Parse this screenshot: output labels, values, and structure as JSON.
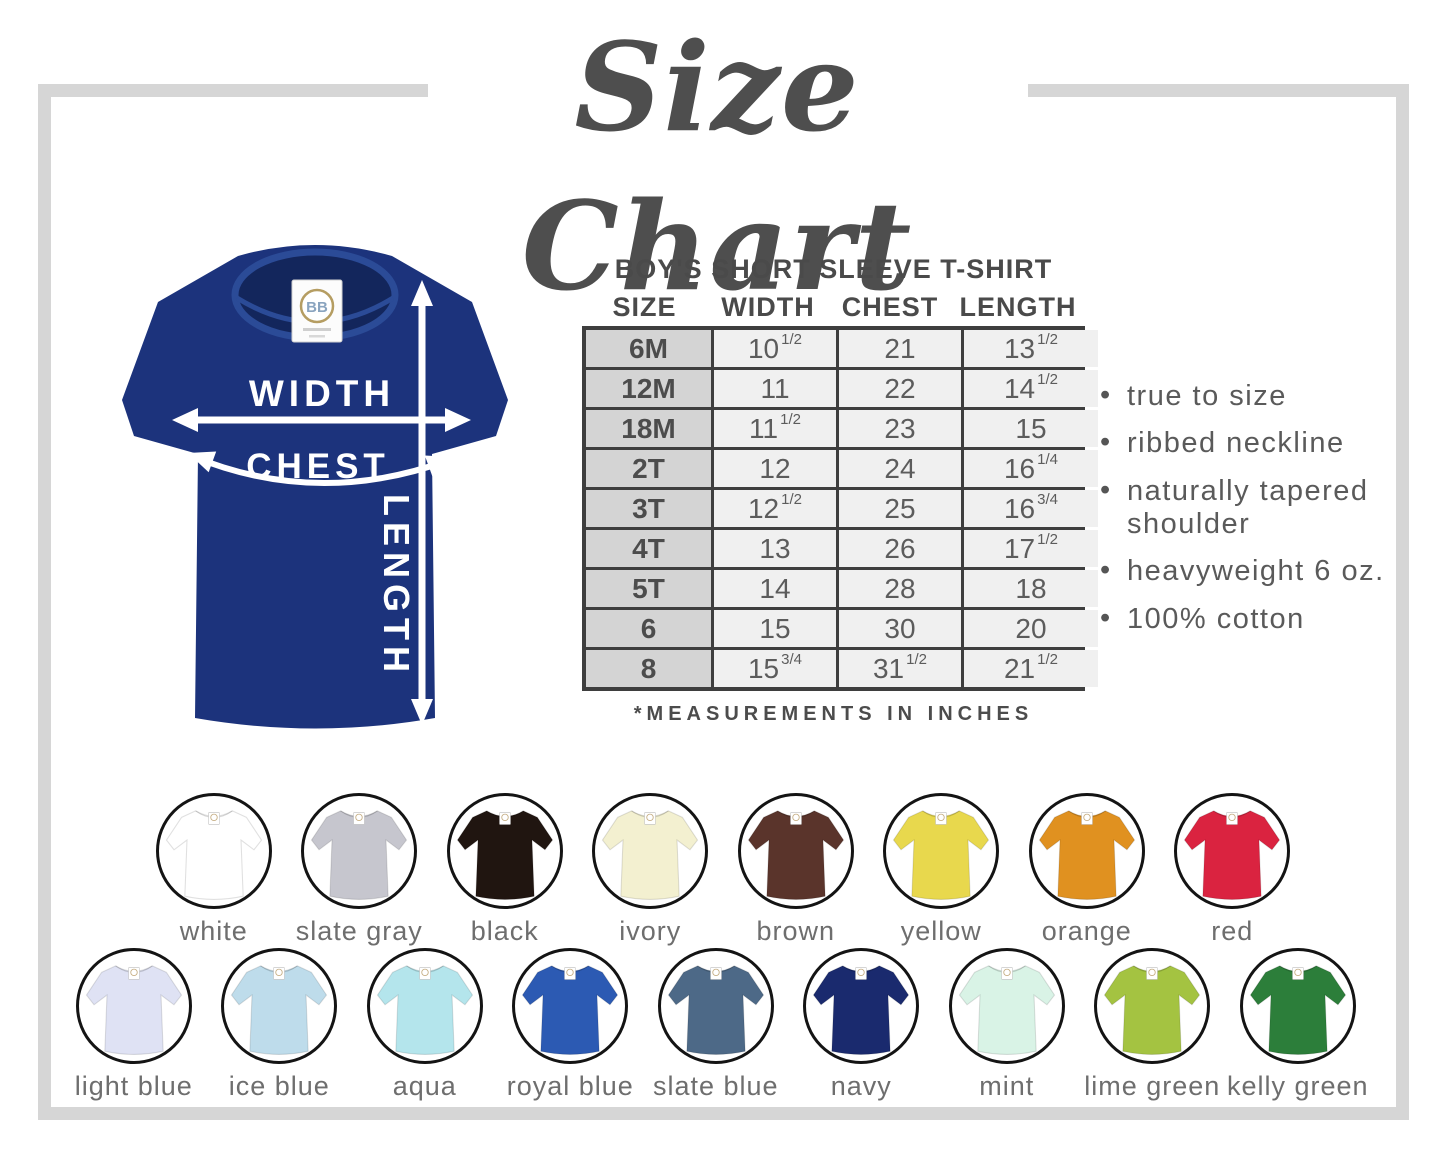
{
  "title": "Size Chart",
  "frame_color": "#d6d6d6",
  "illustration": {
    "shirt_color": "#1c337c",
    "tag_logo": "BB",
    "width_label": "WIDTH",
    "chest_label": "CHEST",
    "length_label": "LENGTH"
  },
  "size_table": {
    "heading": "BOY'S SHORT SLEEVE T-SHIRT",
    "columns": [
      "SIZE",
      "WIDTH",
      "CHEST",
      "LENGTH"
    ],
    "rows": [
      {
        "size": "6M",
        "width": [
          "10",
          "1/2"
        ],
        "chest": [
          "21",
          ""
        ],
        "length": [
          "13",
          "1/2"
        ]
      },
      {
        "size": "12M",
        "width": [
          "11",
          ""
        ],
        "chest": [
          "22",
          ""
        ],
        "length": [
          "14",
          "1/2"
        ]
      },
      {
        "size": "18M",
        "width": [
          "11",
          "1/2"
        ],
        "chest": [
          "23",
          ""
        ],
        "length": [
          "15",
          ""
        ]
      },
      {
        "size": "2T",
        "width": [
          "12",
          ""
        ],
        "chest": [
          "24",
          ""
        ],
        "length": [
          "16",
          "1/4"
        ]
      },
      {
        "size": "3T",
        "width": [
          "12",
          "1/2"
        ],
        "chest": [
          "25",
          ""
        ],
        "length": [
          "16",
          "3/4"
        ]
      },
      {
        "size": "4T",
        "width": [
          "13",
          ""
        ],
        "chest": [
          "26",
          ""
        ],
        "length": [
          "17",
          "1/2"
        ]
      },
      {
        "size": "5T",
        "width": [
          "14",
          ""
        ],
        "chest": [
          "28",
          ""
        ],
        "length": [
          "18",
          ""
        ]
      },
      {
        "size": "6",
        "width": [
          "15",
          ""
        ],
        "chest": [
          "30",
          ""
        ],
        "length": [
          "20",
          ""
        ]
      },
      {
        "size": "8",
        "width": [
          "15",
          "3/4"
        ],
        "chest": [
          "31",
          "1/2"
        ],
        "length": [
          "21",
          "1/2"
        ]
      }
    ],
    "note": "*MEASUREMENTS IN INCHES"
  },
  "features": [
    "true to size",
    "ribbed neckline",
    "naturally tapered shoulder",
    "heavyweight 6 oz.",
    "100% cotton"
  ],
  "swatches": {
    "row1": [
      {
        "label": "white",
        "hex": "#ffffff"
      },
      {
        "label": "slate gray",
        "hex": "#c6c6ce"
      },
      {
        "label": "black",
        "hex": "#201510"
      },
      {
        "label": "ivory",
        "hex": "#f3f0d0"
      },
      {
        "label": "brown",
        "hex": "#5a342b"
      },
      {
        "label": "yellow",
        "hex": "#e8d84d"
      },
      {
        "label": "orange",
        "hex": "#e09120"
      },
      {
        "label": "red",
        "hex": "#da2340"
      }
    ],
    "row2": [
      {
        "label": "light blue",
        "hex": "#dfe2f4"
      },
      {
        "label": "ice blue",
        "hex": "#bedceb"
      },
      {
        "label": "aqua",
        "hex": "#b4e5ec"
      },
      {
        "label": "royal blue",
        "hex": "#2c5ab3"
      },
      {
        "label": "slate blue",
        "hex": "#4d6987"
      },
      {
        "label": "navy",
        "hex": "#1a2a6e"
      },
      {
        "label": "mint",
        "hex": "#d9f3e6"
      },
      {
        "label": "lime green",
        "hex": "#a4c341"
      },
      {
        "label": "kelly green",
        "hex": "#2c7e3a"
      }
    ]
  },
  "chart_data": {
    "type": "table",
    "title": "BOY'S SHORT SLEEVE T-SHIRT",
    "columns": [
      "SIZE",
      "WIDTH",
      "CHEST",
      "LENGTH"
    ],
    "rows": [
      [
        "6M",
        "10 1/2",
        "21",
        "13 1/2"
      ],
      [
        "12M",
        "11",
        "22",
        "14 1/2"
      ],
      [
        "18M",
        "11 1/2",
        "23",
        "15"
      ],
      [
        "2T",
        "12",
        "24",
        "16 1/4"
      ],
      [
        "3T",
        "12 1/2",
        "25",
        "16 3/4"
      ],
      [
        "4T",
        "13",
        "26",
        "17 1/2"
      ],
      [
        "5T",
        "14",
        "28",
        "18"
      ],
      [
        "6",
        "15",
        "30",
        "20"
      ],
      [
        "8",
        "15 3/4",
        "31 1/2",
        "21 1/2"
      ]
    ],
    "note": "*MEASUREMENTS IN INCHES"
  }
}
